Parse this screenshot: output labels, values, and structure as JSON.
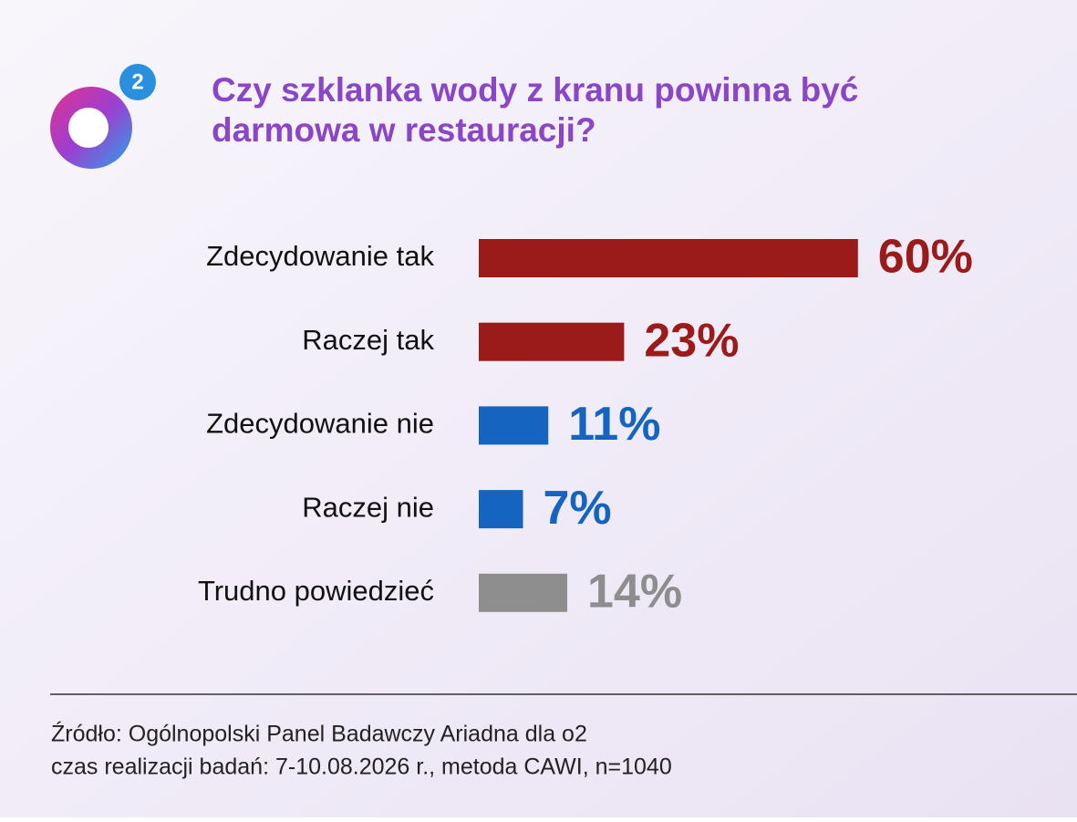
{
  "logo": "2",
  "chart_data": {
    "type": "bar",
    "orientation": "horizontal",
    "title": [
      "Czy szklanka wody z kranu powinna być",
      "darmowa w restauracji?"
    ],
    "categories": [
      "Zdecydowanie tak",
      "Raczej tak",
      "Zdecydowanie nie",
      "Raczej nie",
      "Trudno powiedzieć"
    ],
    "values": [
      60,
      23,
      11,
      7,
      14
    ],
    "value_labels": [
      "60%",
      "23%",
      "11%",
      "7%",
      "14%"
    ],
    "colors": [
      "#9b1b1b",
      "#9b1b1b",
      "#1565c0",
      "#1565c0",
      "#8e8e8e"
    ],
    "source": [
      "Źródło: Ogólnopolski Panel Badawczy Ariadna dla o2",
      "czas realizacji badań: 7-10.08.2026 r., metoda CAWI, n=1040"
    ]
  }
}
